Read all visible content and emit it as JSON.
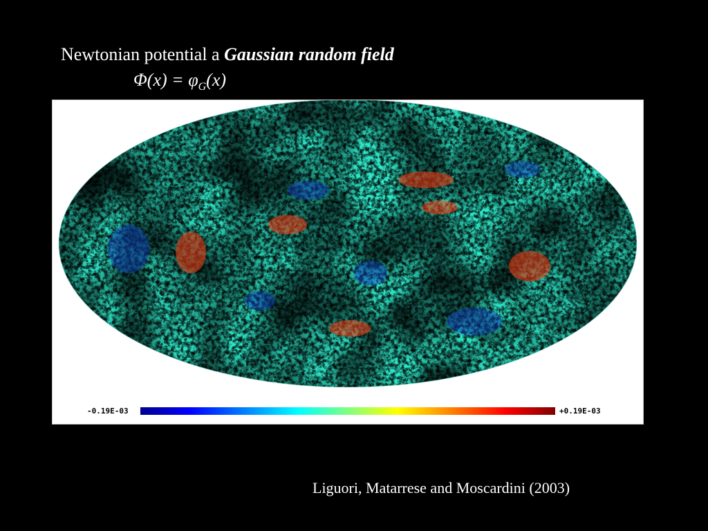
{
  "slide": {
    "title_plain": "Newtonian potential a ",
    "title_emph": "Gaussian random field",
    "formula": {
      "lhs": "Φ(x) = ",
      "phi": "φ",
      "sub": "G",
      "rhs": "(x)"
    },
    "citation": "Liguori, Matarrese and  Moscardini (2003)"
  },
  "map": {
    "projection": "Mollweide all-sky",
    "colormap": "jet",
    "colorbar_min_label": "-0.19E-03",
    "colorbar_max_label": "+0.19E-03",
    "colors": {
      "background": "#000000",
      "panel": "#ffffff"
    }
  }
}
